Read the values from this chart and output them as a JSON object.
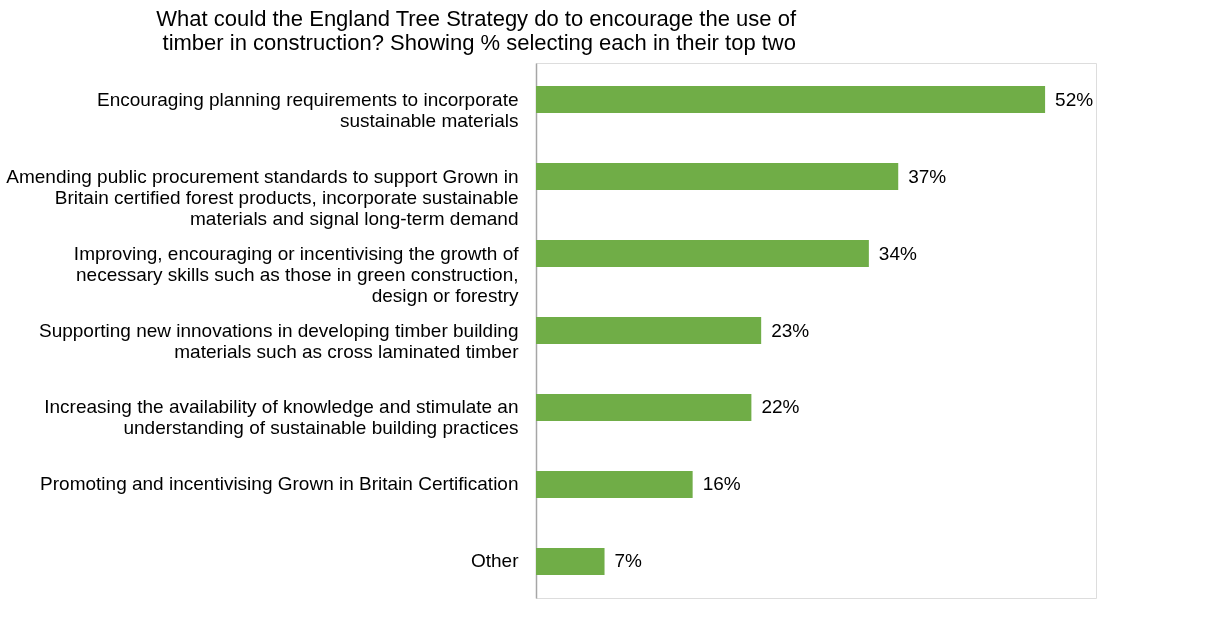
{
  "chart_data": {
    "type": "bar",
    "orientation": "horizontal",
    "title": "What could the England Tree Strategy do to encourage the use of timber in construction? Showing % selecting each in their top two",
    "categories": [
      "Encouraging planning requirements to incorporate sustainable materials",
      "Amending public procurement standards to support Grown in Britain certified forest products, incorporate sustainable materials and signal long-term demand",
      "Improving, encouraging or incentivising the growth of necessary skills such as those in green construction, design or forestry",
      "Supporting new innovations in developing timber building materials such as cross laminated timber",
      "Increasing the availability of knowledge and stimulate an understanding of sustainable building practices",
      "Promoting and incentivising Grown in Britain Certification",
      "Other"
    ],
    "values": [
      52,
      37,
      34,
      23,
      22,
      16,
      7
    ],
    "value_labels": [
      "52%",
      "37%",
      "34%",
      "23%",
      "22%",
      "16%",
      "7%"
    ],
    "color": "#70ad47",
    "grid": false
  }
}
